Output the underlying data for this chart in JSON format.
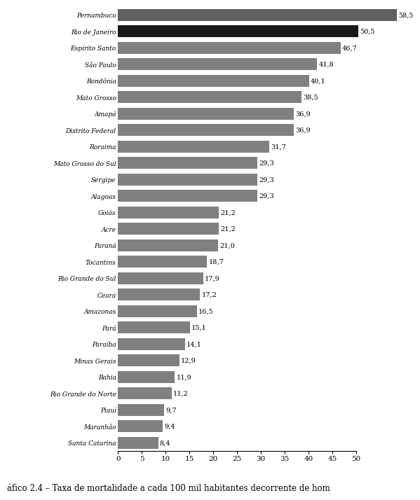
{
  "states": [
    "Pernambuco",
    "Rio de Janeiro",
    "Espírito Santo",
    "São Paulo",
    "Rondônia",
    "Mato Grosso",
    "Amapá",
    "Distrito Federal",
    "Roraima",
    "Mato Grosso do Sul",
    "Sergipe",
    "Alagoas",
    "Goiás",
    "Acre",
    "Paraná",
    "Tocantins",
    "Rio Grande do Sul",
    "Ceará",
    "Amazonas",
    "Pará",
    "Paraíba",
    "Minas Gerais",
    "Bahia",
    "Rio Grande do Norte",
    "Piauí",
    "Maranhão",
    "Santa Catarina"
  ],
  "values": [
    58.5,
    50.5,
    46.7,
    41.8,
    40.1,
    38.5,
    36.9,
    36.9,
    31.7,
    29.3,
    29.3,
    29.3,
    21.2,
    21.2,
    21.0,
    18.7,
    17.9,
    17.2,
    16.5,
    15.1,
    14.1,
    12.9,
    11.9,
    11.2,
    9.7,
    9.4,
    8.4
  ],
  "bar_colors": [
    "#606060",
    "#1a1a1a",
    "#808080",
    "#808080",
    "#808080",
    "#808080",
    "#808080",
    "#808080",
    "#808080",
    "#808080",
    "#808080",
    "#808080",
    "#808080",
    "#808080",
    "#808080",
    "#808080",
    "#808080",
    "#808080",
    "#808080",
    "#808080",
    "#808080",
    "#808080",
    "#808080",
    "#808080",
    "#808080",
    "#808080",
    "#808080"
  ],
  "xlim": [
    0,
    50
  ],
  "xticks": [
    0,
    5,
    10,
    15,
    20,
    25,
    30,
    35,
    40,
    45,
    50
  ],
  "caption": "áfico 2.4 – Taxa de mortalidade a cada 100 mil habitantes decorrente de hom",
  "background_color": "#ffffff",
  "bar_height": 0.72,
  "label_fontsize": 6.5,
  "value_fontsize": 7.0,
  "caption_fontsize": 8.5
}
